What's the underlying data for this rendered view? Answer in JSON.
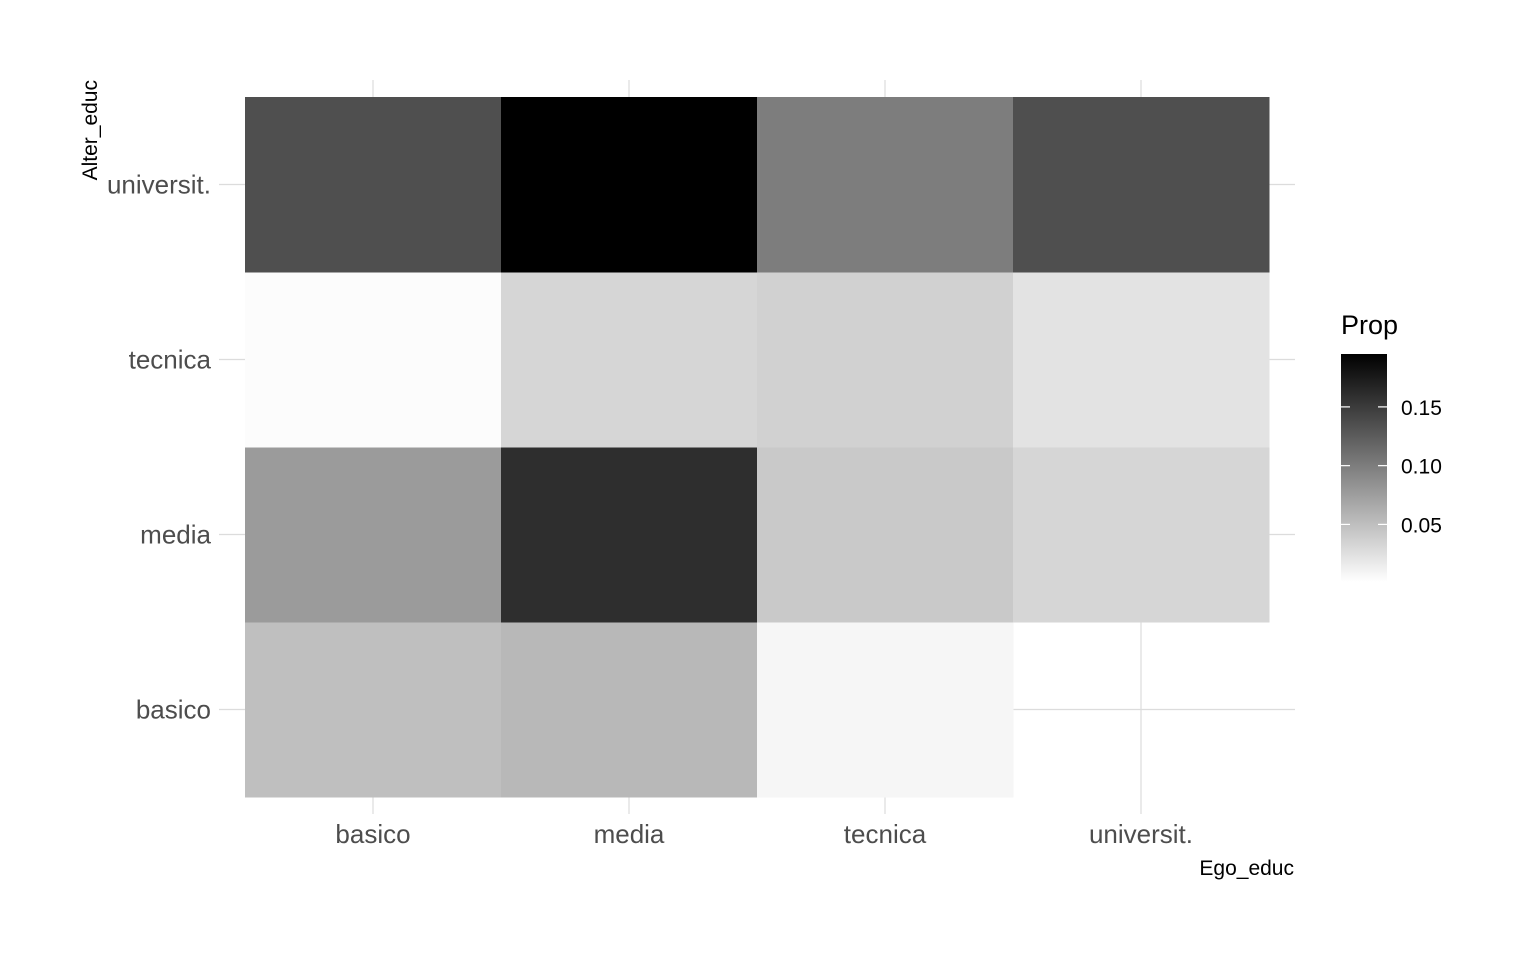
{
  "chart_data": {
    "type": "heatmap",
    "xlabel": "Ego_educ",
    "ylabel": "Alter_educ",
    "x_categories": [
      "basico",
      "media",
      "tecnica",
      "universit."
    ],
    "y_categories": [
      "basico",
      "media",
      "tecnica",
      "universit."
    ],
    "cells": [
      {
        "x": "basico",
        "y": "basico",
        "value": 0.05
      },
      {
        "x": "media",
        "y": "basico",
        "value": 0.055
      },
      {
        "x": "tecnica",
        "y": "basico",
        "value": 0.008
      },
      {
        "x": "basico",
        "y": "media",
        "value": 0.077
      },
      {
        "x": "media",
        "y": "media",
        "value": 0.16
      },
      {
        "x": "tecnica",
        "y": "media",
        "value": 0.042
      },
      {
        "x": "universit.",
        "y": "media",
        "value": 0.032
      },
      {
        "x": "basico",
        "y": "tecnica",
        "value": 0.003
      },
      {
        "x": "media",
        "y": "tecnica",
        "value": 0.032
      },
      {
        "x": "tecnica",
        "y": "tecnica",
        "value": 0.036
      },
      {
        "x": "universit.",
        "y": "tecnica",
        "value": 0.022
      },
      {
        "x": "basico",
        "y": "universit.",
        "value": 0.135
      },
      {
        "x": "media",
        "y": "universit.",
        "value": 0.195
      },
      {
        "x": "tecnica",
        "y": "universit.",
        "value": 0.1
      },
      {
        "x": "universit.",
        "y": "universit.",
        "value": 0.135
      }
    ],
    "legend": {
      "title": "Prop",
      "ticks": [
        0.05,
        0.1,
        0.15
      ],
      "tick_labels": [
        "0.05",
        "0.10",
        "0.15"
      ],
      "min": 0.001,
      "max": 0.195,
      "color_low": "#ffffff",
      "color_high": "#000000",
      "placement": "right"
    },
    "grid": true
  }
}
